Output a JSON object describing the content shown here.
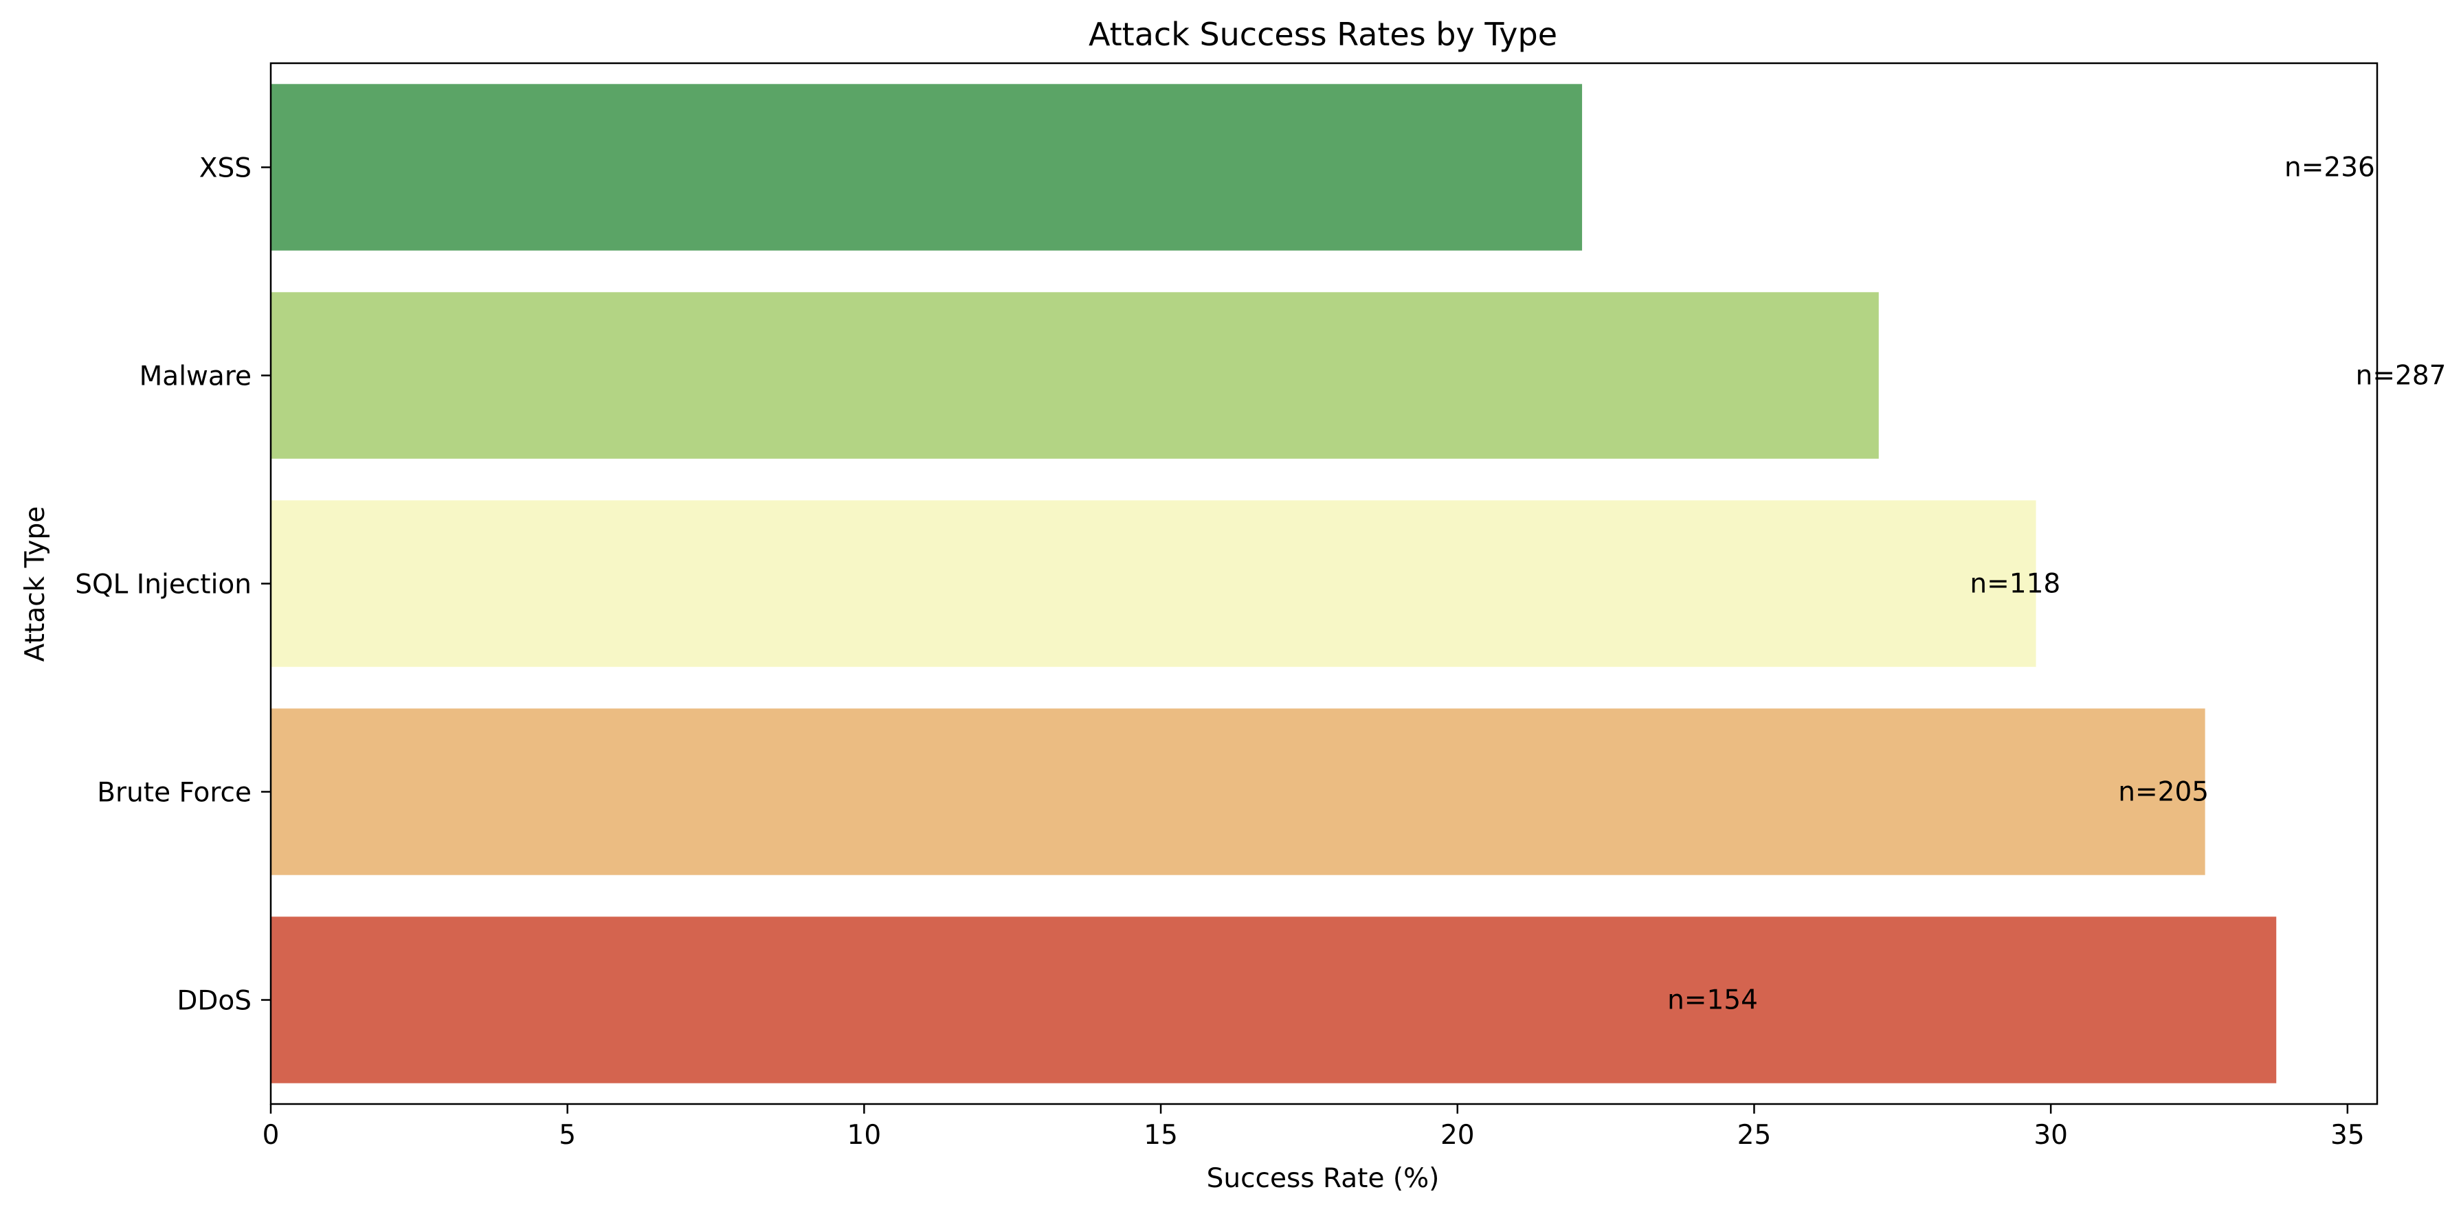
{
  "chart_data": {
    "type": "bar",
    "orientation": "horizontal",
    "title": "Attack Success Rates by Type",
    "xlabel": "Success Rate (%)",
    "ylabel": "Attack Type",
    "categories": [
      "XSS",
      "Malware",
      "SQL Injection",
      "Brute Force",
      "DDoS"
    ],
    "values": [
      22.1,
      27.1,
      29.75,
      32.6,
      33.8
    ],
    "colors": [
      "#5ba466",
      "#b3d484",
      "#f7f7c6",
      "#ebbc82",
      "#d4644f"
    ],
    "bar_labels": [
      "n=236",
      "n=287",
      "n=118",
      "n=205",
      "n=154"
    ],
    "bar_label_x": [
      34.7,
      35.9,
      29.4,
      31.9,
      24.3
    ],
    "xlim": [
      0,
      35.5
    ],
    "xticks": [
      0,
      5,
      10,
      15,
      20,
      25,
      30,
      35
    ],
    "xtick_labels": [
      "0",
      "5",
      "10",
      "15",
      "20",
      "25",
      "30",
      "35"
    ],
    "grid": false,
    "legend": false
  }
}
